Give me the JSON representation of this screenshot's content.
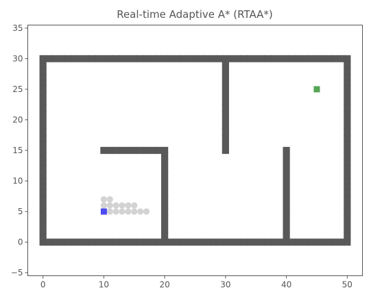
{
  "chart_data": {
    "type": "scatter",
    "title": "Real-time Adaptive A* (RTAA*)",
    "xlabel": "",
    "ylabel": "",
    "xlim": [
      -2.5,
      52.5
    ],
    "ylim": [
      -5.5,
      35.5
    ],
    "x_ticks": [
      0,
      10,
      20,
      30,
      40,
      50
    ],
    "y_ticks": [
      -5,
      0,
      5,
      10,
      15,
      20,
      25,
      30,
      35
    ],
    "grid": false,
    "series": [
      {
        "role": "obstacles",
        "color": "#595959",
        "marker": "square",
        "segments": [
          {
            "from": [
              0,
              0
            ],
            "to": [
              50,
              0
            ]
          },
          {
            "from": [
              0,
              30
            ],
            "to": [
              50,
              30
            ]
          },
          {
            "from": [
              0,
              0
            ],
            "to": [
              0,
              30
            ]
          },
          {
            "from": [
              50,
              0
            ],
            "to": [
              50,
              30
            ]
          },
          {
            "from": [
              10,
              15
            ],
            "to": [
              20,
              15
            ]
          },
          {
            "from": [
              20,
              0
            ],
            "to": [
              20,
              15
            ]
          },
          {
            "from": [
              30,
              15
            ],
            "to": [
              30,
              30
            ]
          },
          {
            "from": [
              40,
              0
            ],
            "to": [
              40,
              15
            ]
          }
        ]
      },
      {
        "role": "visited",
        "color": "#d3d3d3",
        "marker": "circle",
        "points": [
          [
            10,
            7
          ],
          [
            11,
            7
          ],
          [
            10,
            6
          ],
          [
            11,
            6
          ],
          [
            12,
            6
          ],
          [
            13,
            6
          ],
          [
            14,
            6
          ],
          [
            15,
            6
          ],
          [
            11,
            5
          ],
          [
            12,
            5
          ],
          [
            13,
            5
          ],
          [
            14,
            5
          ],
          [
            15,
            5
          ],
          [
            16,
            5
          ],
          [
            17,
            5
          ]
        ]
      },
      {
        "role": "start",
        "color": "#4b4bf0",
        "marker": "square",
        "points": [
          [
            10,
            5
          ]
        ]
      },
      {
        "role": "goal",
        "color": "#55a555",
        "marker": "square",
        "points": [
          [
            45,
            25
          ]
        ]
      }
    ]
  }
}
